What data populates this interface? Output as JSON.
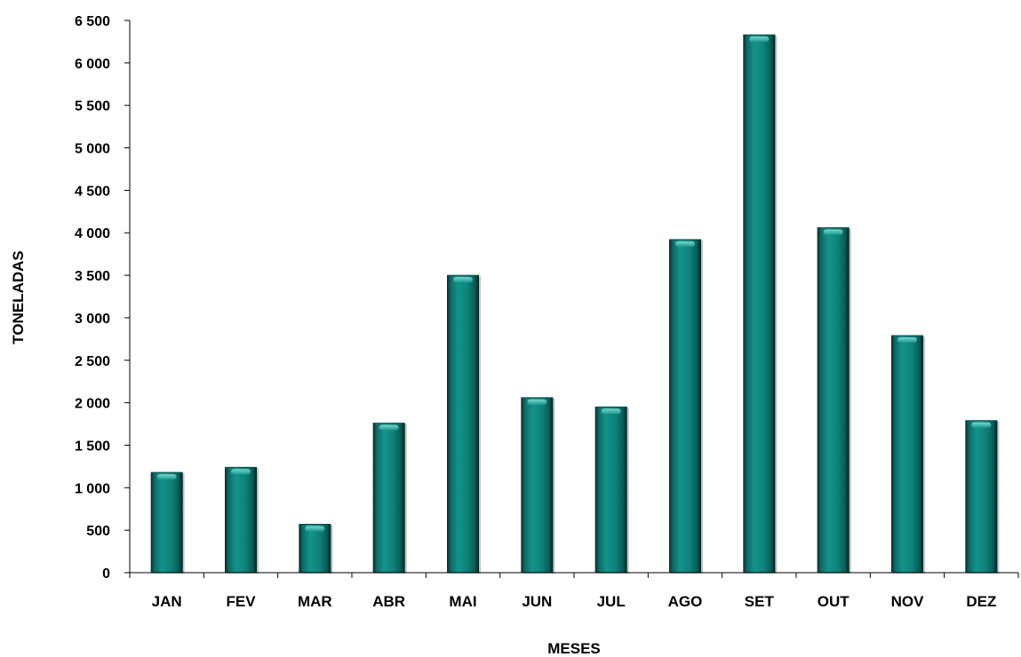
{
  "chart_data": {
    "type": "bar",
    "title": "",
    "xlabel": "MESES",
    "ylabel": "TONELADAS",
    "categories": [
      "JAN",
      "FEV",
      "MAR",
      "ABR",
      "MAI",
      "JUN",
      "JUL",
      "AGO",
      "SET",
      "OUT",
      "NOV",
      "DEZ"
    ],
    "series": [
      {
        "values": [
          1180,
          1240,
          570,
          1760,
          3500,
          2060,
          1950,
          3920,
          6330,
          4060,
          2790,
          1790
        ]
      }
    ],
    "ylim": [
      0,
      6500
    ],
    "yticks": [
      0,
      500,
      1000,
      1500,
      2000,
      2500,
      3000,
      3500,
      4000,
      4500,
      5000,
      5500,
      6000,
      6500
    ],
    "ytick_labels": [
      "0",
      "500",
      "1 000",
      "1 500",
      "2 000",
      "2 500",
      "3 000",
      "3 500",
      "4 000",
      "4 500",
      "5 000",
      "5 500",
      "6 000",
      "6 500"
    ],
    "grid": false,
    "legend": "none",
    "colors": {
      "bar_main": "#0f7f78",
      "bar_dark": "#063b38",
      "bar_light": "#5cc9c0"
    }
  }
}
